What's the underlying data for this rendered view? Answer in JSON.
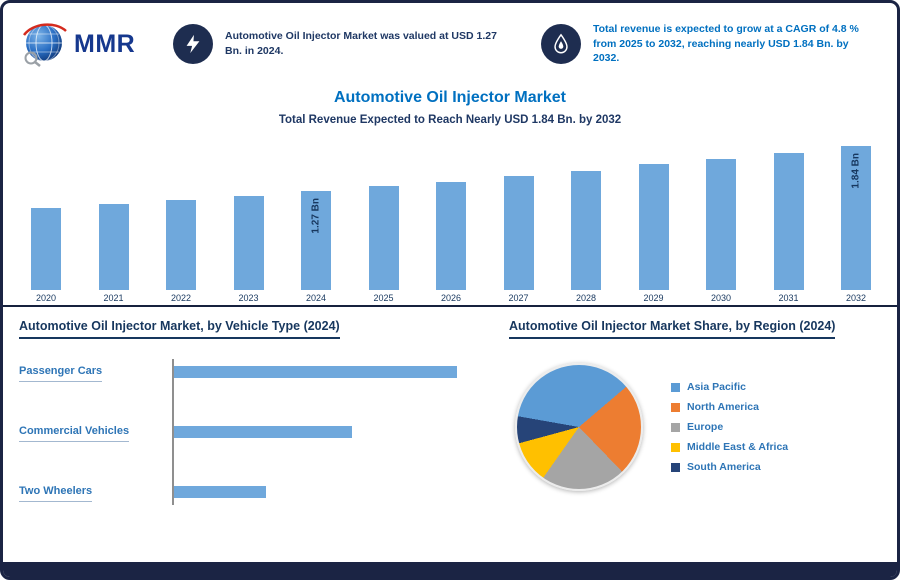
{
  "colors": {
    "accent_blue": "#0070c0",
    "navy": "#1f3864",
    "bar_blue": "#6fa8dc",
    "badge_navy": "#1e2d50"
  },
  "header": {
    "logo_text": "MMR",
    "stats": [
      {
        "icon": "lightning-icon",
        "text": "Automotive Oil Injector Market was valued at USD 1.27 Bn. in 2024."
      },
      {
        "icon": "oil-drop-icon",
        "text": "Total revenue is expected to grow at a CAGR of 4.8 % from 2025 to 2032, reaching nearly USD 1.84 Bn. by 2032."
      }
    ]
  },
  "title_block": {
    "title": "Automotive Oil Injector Market",
    "subtitle": "Total Revenue Expected to Reach Nearly USD 1.84 Bn. by 2032"
  },
  "chart_data": [
    {
      "type": "bar",
      "title": "Automotive Oil Injector Market",
      "categories": [
        "2020",
        "2021",
        "2022",
        "2023",
        "2024",
        "2025",
        "2026",
        "2027",
        "2028",
        "2029",
        "2030",
        "2031",
        "2032"
      ],
      "values": [
        1.05,
        1.1,
        1.16,
        1.21,
        1.27,
        1.33,
        1.39,
        1.46,
        1.53,
        1.61,
        1.68,
        1.76,
        1.84
      ],
      "unit": "USD Bn",
      "ylim": [
        0,
        2
      ],
      "grid": false,
      "bar_color": "#6fa8dc",
      "labeled_points": [
        {
          "category": "2024",
          "label": "1.27 Bn"
        },
        {
          "category": "2032",
          "label": "1.84 Bn"
        }
      ]
    },
    {
      "type": "bar",
      "orientation": "horizontal",
      "title": "Automotive Oil Injector Market, by Vehicle Type (2024)",
      "categories": [
        "Passenger Cars",
        "Commercial Vehicles",
        "Two Wheelers"
      ],
      "values": [
        100,
        63,
        33
      ],
      "unit": "relative bar length (axis values not labeled)",
      "bar_color": "#6fa8dc"
    },
    {
      "type": "pie",
      "title": "Automotive Oil Injector Market Share, by Region (2024)",
      "labels": [
        "Asia Pacific",
        "North America",
        "Europe",
        "Middle East & Africa",
        "South America"
      ],
      "values": [
        36,
        24,
        22,
        11,
        7
      ],
      "unit": "%",
      "colors": [
        "#5b9bd5",
        "#ed7d31",
        "#a5a5a5",
        "#ffc000",
        "#264478"
      ],
      "legend_position": "right",
      "start_angle_deg": 280
    }
  ]
}
